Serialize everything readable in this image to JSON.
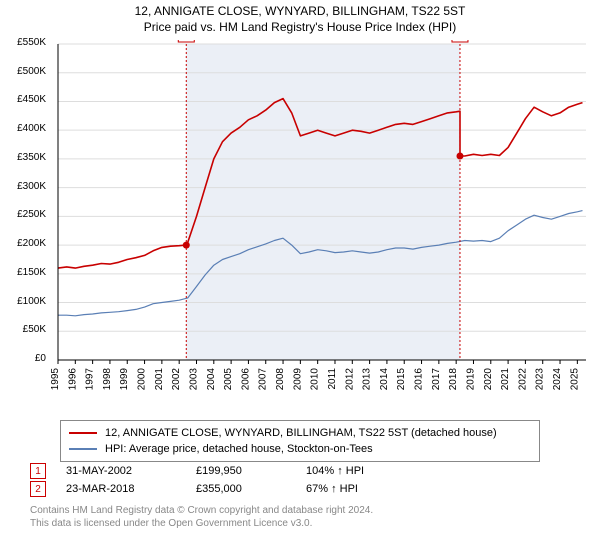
{
  "title_line1": "12, ANNIGATE CLOSE, WYNYARD, BILLINGHAM, TS22 5ST",
  "title_line2": "Price paid vs. HM Land Registry's House Price Index (HPI)",
  "chart": {
    "type": "line",
    "background_color": "#ffffff",
    "plot_border_color": "#000000",
    "grid_color": "#dddddd",
    "shaded_band_color": "#e9edf5",
    "shaded_band_opacity": 0.9,
    "xlim": [
      1995,
      2025.5
    ],
    "ylim": [
      0,
      550
    ],
    "ytick_step": 50,
    "ytick_prefix": "£",
    "ytick_suffix": "K",
    "ytick_labels": [
      "£0",
      "£50K",
      "£100K",
      "£150K",
      "£200K",
      "£250K",
      "£300K",
      "£350K",
      "£400K",
      "£450K",
      "£500K",
      "£550K"
    ],
    "xtick_step": 1,
    "xtick_labels": [
      "1995",
      "1996",
      "1997",
      "1998",
      "1999",
      "2000",
      "2001",
      "2002",
      "2003",
      "2004",
      "2005",
      "2006",
      "2007",
      "2008",
      "2009",
      "2010",
      "2011",
      "2012",
      "2013",
      "2014",
      "2015",
      "2016",
      "2017",
      "2018",
      "2019",
      "2020",
      "2021",
      "2022",
      "2023",
      "2024",
      "2025"
    ],
    "xtick_rotation": -90,
    "axis_fontsize": 10,
    "title_fontsize": 12,
    "marker_radius": 3.5,
    "marker_fill": "#c80000",
    "sale_vline_color": "#c80000",
    "sale_vline_dash": "2,2",
    "sale_badge_border": "#c80000",
    "sale_badge_text_color": "#c80000",
    "sale_badge_fill": "#ffffff",
    "sale_badge_fontsize": 10,
    "shaded_band_xstart": 2002.41,
    "shaded_band_xend": 2018.22,
    "series": [
      {
        "name": "property",
        "label": "12, ANNIGATE CLOSE, WYNYARD, BILLINGHAM, TS22 5ST (detached house)",
        "color": "#c80000",
        "line_width": 1.6,
        "x": [
          1995,
          1995.5,
          1996,
          1996.5,
          1997,
          1997.5,
          1998,
          1998.5,
          1999,
          1999.5,
          2000,
          2000.5,
          2001,
          2001.5,
          2002,
          2002.41,
          2002.5,
          2003,
          2003.5,
          2004,
          2004.5,
          2005,
          2005.5,
          2006,
          2006.5,
          2007,
          2007.5,
          2008,
          2008.5,
          2009,
          2009.5,
          2010,
          2010.5,
          2011,
          2011.5,
          2012,
          2012.5,
          2013,
          2013.5,
          2014,
          2014.5,
          2015,
          2015.5,
          2016,
          2016.5,
          2017,
          2017.5,
          2018,
          2018.22,
          2018.22,
          2018.5,
          2019,
          2019.5,
          2020,
          2020.5,
          2021,
          2021.5,
          2022,
          2022.5,
          2023,
          2023.5,
          2024,
          2024.5,
          2025,
          2025.3
        ],
        "y": [
          160,
          162,
          160,
          163,
          165,
          168,
          167,
          170,
          175,
          178,
          182,
          190,
          196,
          198,
          199,
          199.95,
          205,
          250,
          300,
          350,
          380,
          395,
          405,
          418,
          425,
          435,
          448,
          455,
          430,
          390,
          395,
          400,
          395,
          390,
          395,
          400,
          398,
          395,
          400,
          405,
          410,
          412,
          410,
          415,
          420,
          425,
          430,
          432,
          433,
          355,
          355,
          358,
          356,
          358,
          356,
          370,
          395,
          420,
          440,
          432,
          425,
          430,
          440,
          445,
          448
        ]
      },
      {
        "name": "hpi",
        "label": "HPI: Average price, detached house, Stockton-on-Tees",
        "color": "#5a7fb5",
        "line_width": 1.2,
        "x": [
          1995,
          1995.5,
          1996,
          1996.5,
          1997,
          1997.5,
          1998,
          1998.5,
          1999,
          1999.5,
          2000,
          2000.5,
          2001,
          2001.5,
          2002,
          2002.5,
          2003,
          2003.5,
          2004,
          2004.5,
          2005,
          2005.5,
          2006,
          2006.5,
          2007,
          2007.5,
          2008,
          2008.5,
          2009,
          2009.5,
          2010,
          2010.5,
          2011,
          2011.5,
          2012,
          2012.5,
          2013,
          2013.5,
          2014,
          2014.5,
          2015,
          2015.5,
          2016,
          2016.5,
          2017,
          2017.5,
          2018,
          2018.5,
          2019,
          2019.5,
          2020,
          2020.5,
          2021,
          2021.5,
          2022,
          2022.5,
          2023,
          2023.5,
          2024,
          2024.5,
          2025,
          2025.3
        ],
        "y": [
          78,
          78,
          77,
          79,
          80,
          82,
          83,
          84,
          86,
          88,
          92,
          98,
          100,
          102,
          104,
          108,
          128,
          148,
          165,
          175,
          180,
          185,
          192,
          197,
          202,
          208,
          212,
          200,
          185,
          188,
          192,
          190,
          187,
          188,
          190,
          188,
          186,
          188,
          192,
          195,
          195,
          193,
          196,
          198,
          200,
          203,
          205,
          208,
          207,
          208,
          206,
          212,
          225,
          235,
          245,
          252,
          248,
          245,
          250,
          255,
          258,
          260
        ]
      }
    ],
    "sale_markers": [
      {
        "id": "1",
        "x": 2002.41,
        "y": 199.95
      },
      {
        "id": "2",
        "x": 2018.22,
        "y": 355
      }
    ]
  },
  "legend": {
    "border_color": "#888888",
    "fontsize": 11,
    "items": [
      {
        "color": "#c80000",
        "label": "12, ANNIGATE CLOSE, WYNYARD, BILLINGHAM, TS22 5ST (detached house)"
      },
      {
        "color": "#5a7fb5",
        "label": "HPI: Average price, detached house, Stockton-on-Tees"
      }
    ]
  },
  "sales": [
    {
      "id": "1",
      "date": "31-MAY-2002",
      "price": "£199,950",
      "pct": "104% ↑ HPI"
    },
    {
      "id": "2",
      "date": "23-MAR-2018",
      "price": "£355,000",
      "pct": "67% ↑ HPI"
    }
  ],
  "footer_line1": "Contains HM Land Registry data © Crown copyright and database right 2024.",
  "footer_line2": "This data is licensed under the Open Government Licence v3.0.",
  "footer_color": "#888888",
  "footer_fontsize": 10
}
